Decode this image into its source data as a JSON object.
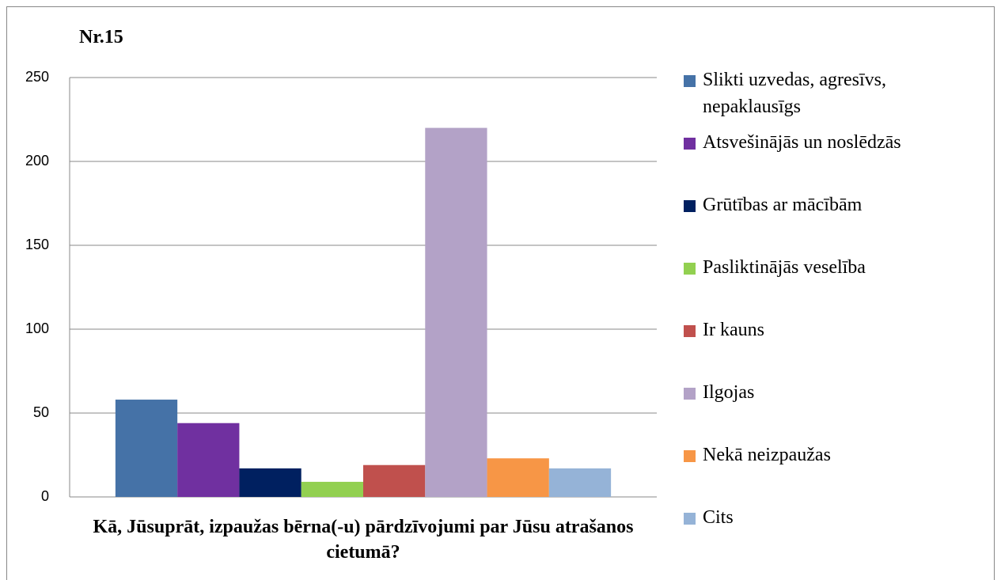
{
  "chart_data": {
    "type": "bar",
    "title": "Nr.15",
    "x_label": "Kā, Jūsuprāt, izpaužas bērna(-u) pārdzīvojumi par Jūsu atrašanos cietumā?",
    "categories": [
      null
    ],
    "series": [
      {
        "name": "Slikti uzvedas, agresīvs, nepaklausīgs",
        "color": "#4572a7",
        "values": [
          58
        ]
      },
      {
        "name": "Atsvešinājās un noslēdzās",
        "color": "#7030a0",
        "values": [
          44
        ]
      },
      {
        "name": "Grūtības ar mācībām",
        "color": "#002060",
        "values": [
          17
        ]
      },
      {
        "name": "Pasliktinājās veselība",
        "color": "#92d050",
        "values": [
          9
        ]
      },
      {
        "name": "Ir kauns",
        "color": "#c0504d",
        "values": [
          19
        ]
      },
      {
        "name": "Ilgojas",
        "color": "#b3a2c7",
        "values": [
          220
        ]
      },
      {
        "name": "Nekā neizpaužas",
        "color": "#f79646",
        "values": [
          23
        ]
      },
      {
        "name": "Cits",
        "color": "#95b3d7",
        "values": [
          17
        ]
      }
    ],
    "ylim": [
      0,
      250
    ],
    "yticks": [
      0,
      50,
      100,
      150,
      200,
      250
    ],
    "grid": true,
    "legend": "right"
  }
}
